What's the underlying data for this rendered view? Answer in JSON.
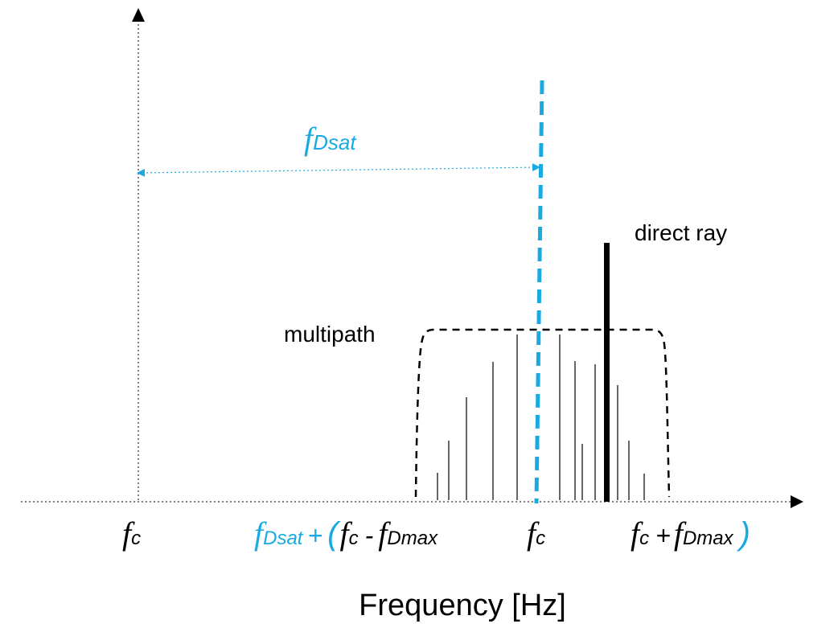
{
  "colors": {
    "accent": "#1aaae2",
    "ink": "#000000"
  },
  "labels": {
    "fdsat_symbol": "f",
    "fdsat_sub": "Dsat",
    "direct_ray": "direct ray",
    "multipath": "multipath",
    "x_axis_title": "Frequency [Hz]"
  },
  "ticks": {
    "left_fc": {
      "f": "f",
      "sub": "c"
    },
    "shifted_left": {
      "f1": "f",
      "sub1": "Dsat",
      "plus": "+",
      "paren_open": "(",
      "f2": "f",
      "sub2": "c",
      "minus": "-",
      "f3": "f",
      "sub3": "Dmax"
    },
    "center_fc": {
      "f": "f",
      "sub": "c"
    },
    "shifted_right": {
      "f1": "f",
      "sub1": "c",
      "plus": "+",
      "f2": "f",
      "sub2": "Dmax",
      "paren_close": ")"
    }
  },
  "arrows": {
    "fdsat_arrow": "double-headed arrow",
    "y_axis": "arrow-up-icon",
    "x_axis": "arrow-right-icon"
  }
}
